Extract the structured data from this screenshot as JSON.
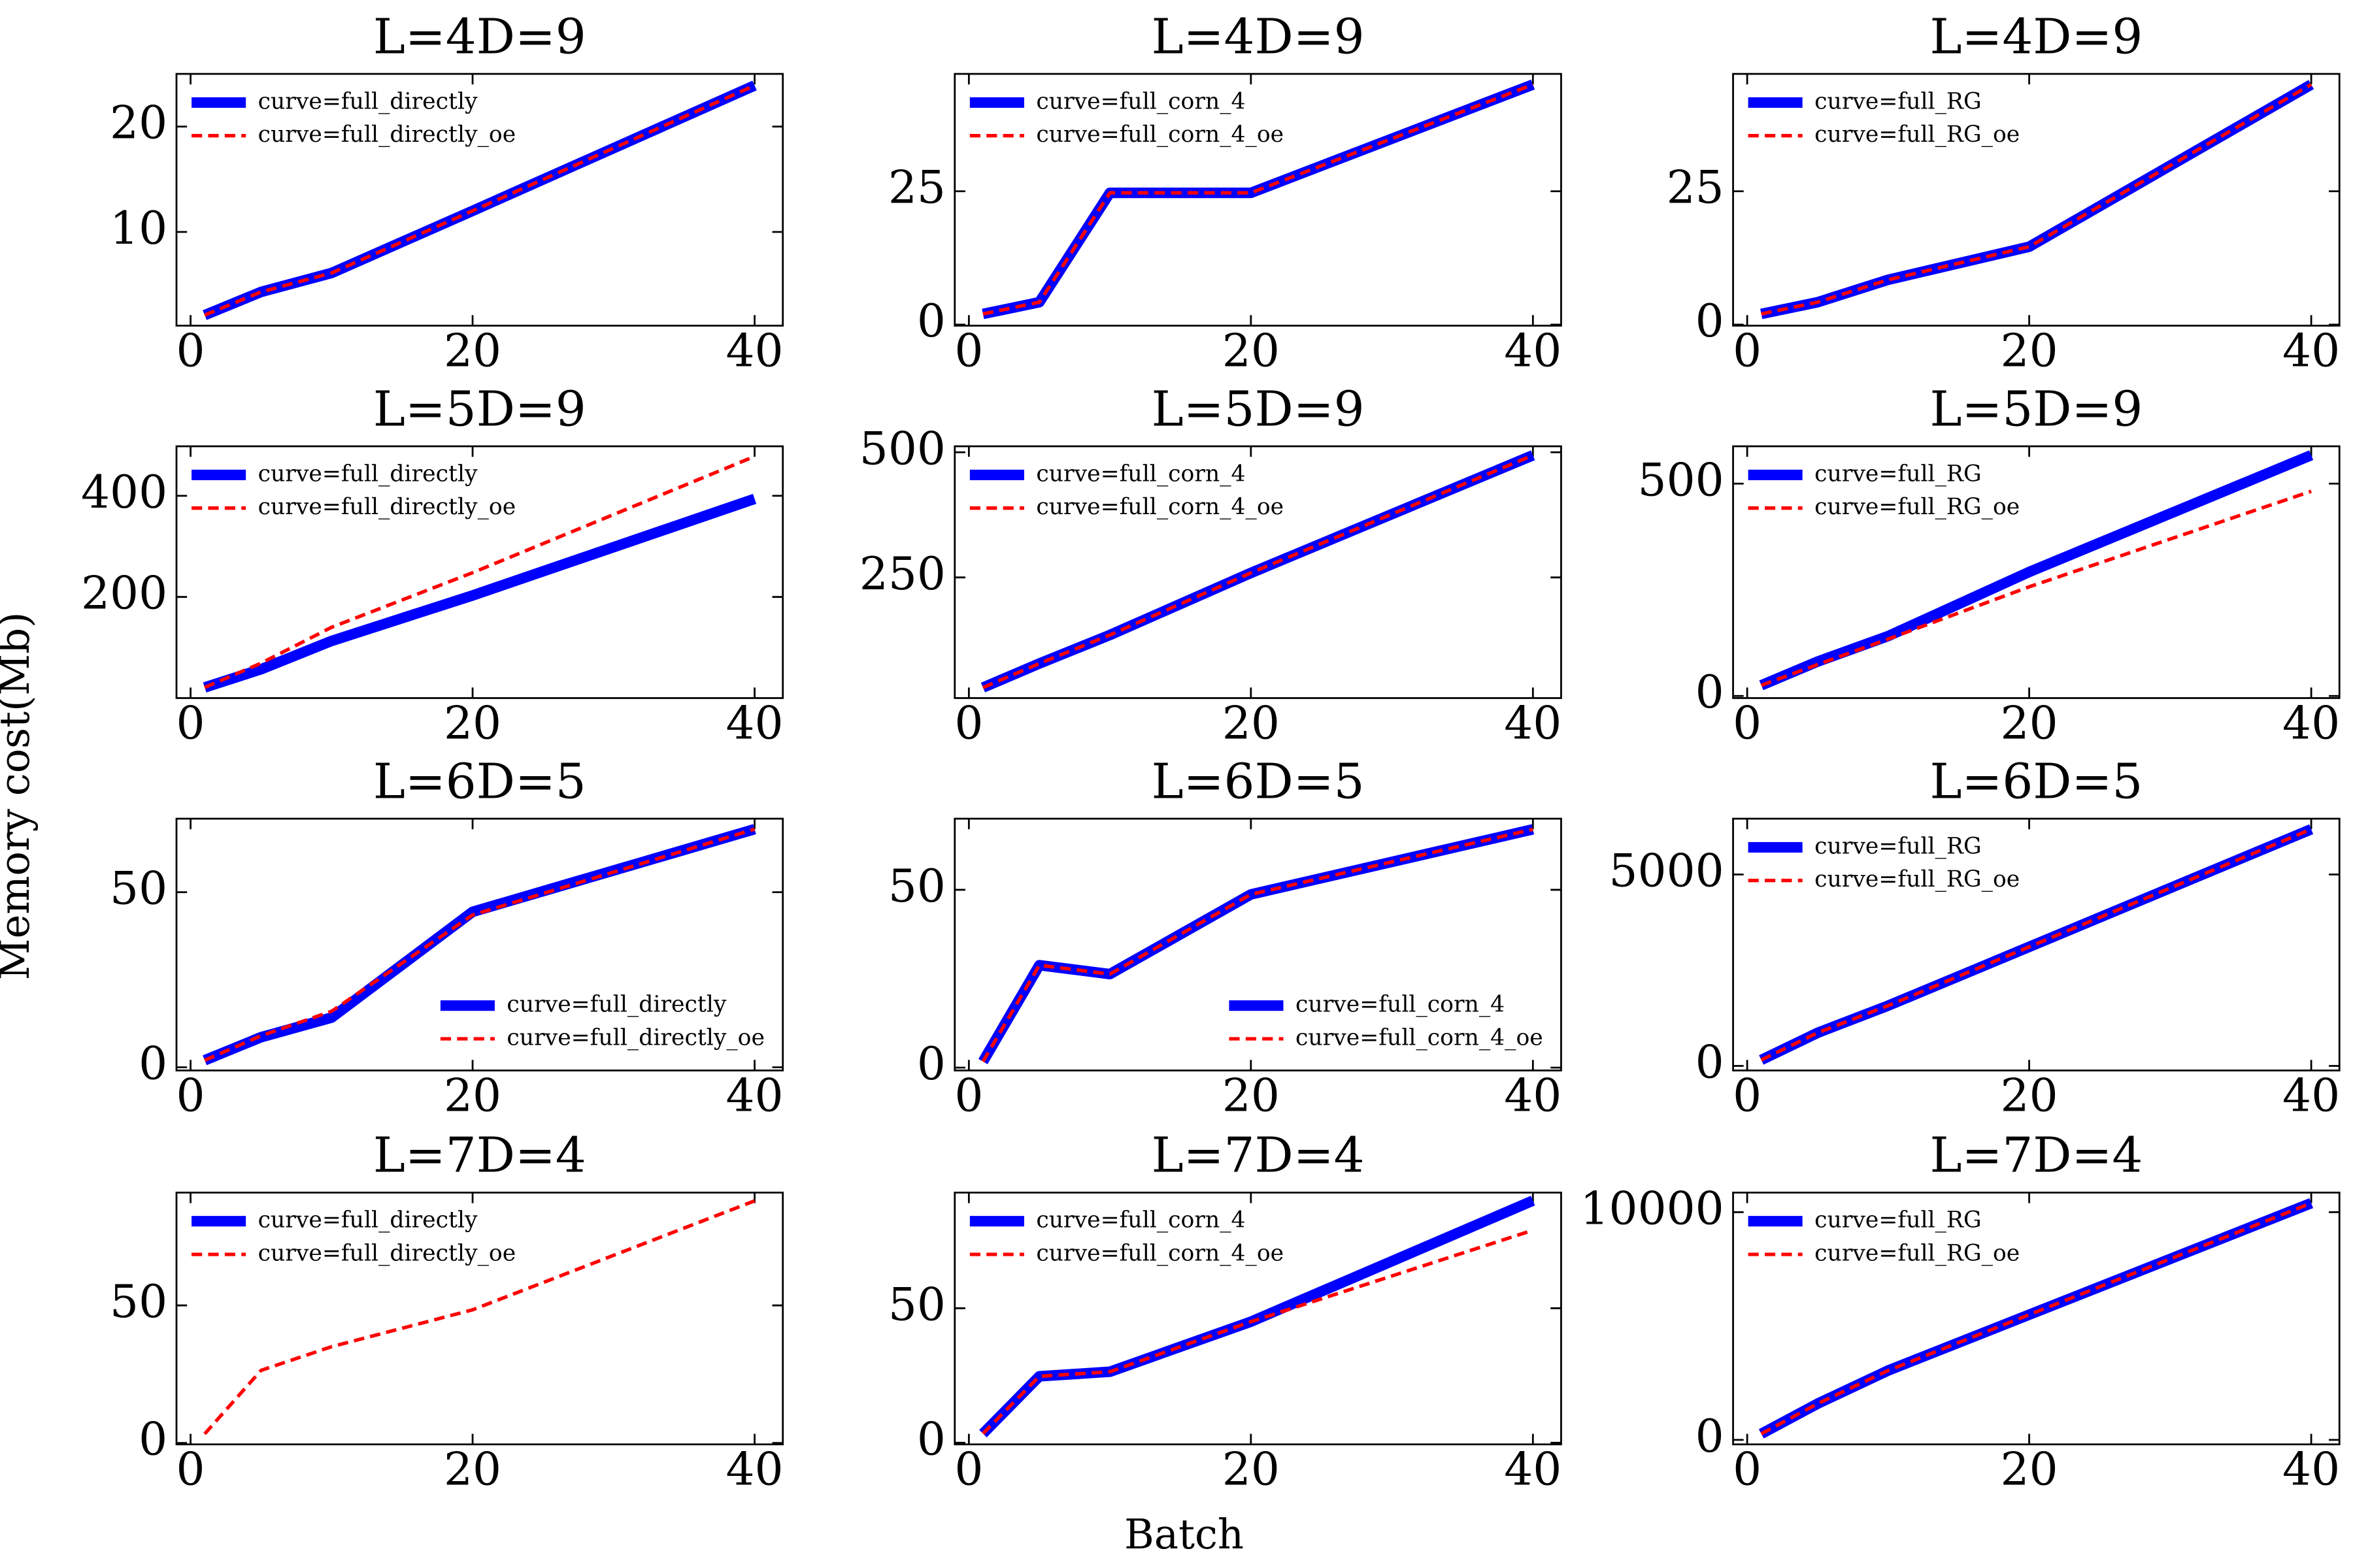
{
  "xlabel": "Batch",
  "ylabel": "Memory cost(Mb)",
  "chart_data": [
    {
      "type": "line",
      "title": "L=4D=9",
      "x": [
        1,
        5,
        10,
        20,
        40
      ],
      "xlim": [
        -1,
        42
      ],
      "xticks": [
        0,
        20,
        40
      ],
      "ylim": [
        1.1,
        25
      ],
      "yticks": [
        10,
        20
      ],
      "legend": "upper left",
      "series": [
        {
          "name": "curve=full_directly",
          "color": "blue",
          "values": [
            2.1,
            4.3,
            6.1,
            12,
            23.9
          ]
        },
        {
          "name": "curve=full_directly_oe",
          "color": "red",
          "values": [
            2.1,
            4.3,
            6.1,
            12,
            23.9
          ]
        }
      ]
    },
    {
      "type": "line",
      "title": "L=4D=9",
      "x": [
        1,
        5,
        10,
        20,
        40
      ],
      "xlim": [
        -1,
        42
      ],
      "xticks": [
        0,
        20,
        40
      ],
      "ylim": [
        -0.2,
        47
      ],
      "yticks": [
        0,
        25
      ],
      "legend": "upper left",
      "series": [
        {
          "name": "curve=full_corn_4",
          "color": "blue",
          "values": [
            2,
            4.2,
            24.7,
            24.7,
            45
          ]
        },
        {
          "name": "curve=full_corn_4_oe",
          "color": "red",
          "values": [
            2,
            4.2,
            24.7,
            24.7,
            45
          ]
        }
      ]
    },
    {
      "type": "line",
      "title": "L=4D=9",
      "x": [
        1,
        5,
        10,
        20,
        40
      ],
      "xlim": [
        -1,
        42
      ],
      "xticks": [
        0,
        20,
        40
      ],
      "ylim": [
        -0.2,
        47
      ],
      "yticks": [
        0,
        25
      ],
      "legend": "upper left",
      "series": [
        {
          "name": "curve=full_RG",
          "color": "blue",
          "values": [
            2,
            4.2,
            8.4,
            14.6,
            45
          ]
        },
        {
          "name": "curve=full_RG_oe",
          "color": "red",
          "values": [
            2,
            4.2,
            8.4,
            14.6,
            45
          ]
        }
      ]
    },
    {
      "type": "line",
      "title": "L=5D=9",
      "x": [
        1,
        5,
        10,
        20,
        40
      ],
      "xlim": [
        -1,
        42
      ],
      "xticks": [
        0,
        20,
        40
      ],
      "ylim": [
        0,
        498
      ],
      "yticks": [
        200,
        400
      ],
      "legend": "upper left",
      "series": [
        {
          "name": "curve=full_directly",
          "color": "blue",
          "values": [
            21,
            57,
            113,
            203,
            394
          ]
        },
        {
          "name": "curve=full_directly_oe",
          "color": "red",
          "values": [
            21,
            69,
            140,
            248,
            478
          ]
        }
      ]
    },
    {
      "type": "line",
      "title": "L=5D=9",
      "x": [
        1,
        5,
        10,
        20,
        40
      ],
      "xlim": [
        -1,
        42
      ],
      "xticks": [
        0,
        20,
        40
      ],
      "ylim": [
        9,
        512
      ],
      "yticks": [
        250,
        500
      ],
      "legend": "upper left",
      "series": [
        {
          "name": "curve=full_corn_4",
          "color": "blue",
          "values": [
            30,
            78,
            135,
            259,
            494
          ]
        },
        {
          "name": "curve=full_corn_4_oe",
          "color": "red",
          "values": [
            30,
            78,
            135,
            259,
            494
          ]
        }
      ]
    },
    {
      "type": "line",
      "title": "L=5D=9",
      "x": [
        1,
        5,
        10,
        20,
        40
      ],
      "xlim": [
        -1,
        42
      ],
      "xticks": [
        0,
        20,
        40
      ],
      "ylim": [
        -5,
        588
      ],
      "yticks": [
        0,
        500
      ],
      "legend": "upper left",
      "series": [
        {
          "name": "curve=full_RG",
          "color": "blue",
          "values": [
            25,
            81,
            141,
            292,
            567
          ]
        },
        {
          "name": "curve=full_RG_oe",
          "color": "red",
          "values": [
            25,
            74,
            134,
            257,
            482
          ]
        }
      ]
    },
    {
      "type": "line",
      "title": "L=6D=5",
      "x": [
        1,
        5,
        10,
        20,
        40
      ],
      "xlim": [
        -1,
        42
      ],
      "xticks": [
        0,
        20,
        40
      ],
      "ylim": [
        -0.9,
        71
      ],
      "yticks": [
        0,
        50
      ],
      "legend": "lower right",
      "series": [
        {
          "name": "curve=full_directly",
          "color": "blue",
          "values": [
            2,
            8.6,
            14.2,
            44.4,
            68
          ]
        },
        {
          "name": "curve=full_directly_oe",
          "color": "red",
          "values": [
            2,
            9,
            16,
            43.5,
            68
          ]
        }
      ]
    },
    {
      "type": "line",
      "title": "L=6D=5",
      "x": [
        1,
        5,
        10,
        20,
        40
      ],
      "xlim": [
        -1,
        42
      ],
      "xticks": [
        0,
        20,
        40
      ],
      "ylim": [
        -0.8,
        70
      ],
      "yticks": [
        0,
        50
      ],
      "legend": "lower right",
      "series": [
        {
          "name": "curve=full_corn_4",
          "color": "blue",
          "values": [
            1.7,
            28.8,
            26.3,
            48.7,
            67
          ]
        },
        {
          "name": "curve=full_corn_4_oe",
          "color": "red",
          "values": [
            1.7,
            28.8,
            26.3,
            48.7,
            67
          ]
        }
      ]
    },
    {
      "type": "line",
      "title": "L=6D=5",
      "x": [
        1,
        5,
        10,
        20,
        40
      ],
      "xlim": [
        -1,
        42
      ],
      "xticks": [
        0,
        20,
        40
      ],
      "ylim": [
        -118,
        6457
      ],
      "yticks": [
        0,
        5000
      ],
      "legend": "upper left",
      "series": [
        {
          "name": "curve=full_RG",
          "color": "blue",
          "values": [
            157,
            866,
            1575,
            3110,
            6181
          ]
        },
        {
          "name": "curve=full_RG_oe",
          "color": "red",
          "values": [
            157,
            866,
            1575,
            3110,
            6181
          ]
        }
      ]
    },
    {
      "type": "line",
      "title": "L=7D=4",
      "x": [
        1,
        5,
        10,
        20,
        40
      ],
      "xlim": [
        -1,
        42
      ],
      "xticks": [
        0,
        20,
        40
      ],
      "ylim": [
        -0.5,
        91
      ],
      "yticks": [
        0,
        50
      ],
      "legend": "upper left",
      "series": [
        {
          "name": "curve=full_directly",
          "color": "blue",
          "values": [
            null,
            null,
            null,
            null,
            null
          ]
        },
        {
          "name": "curve=full_directly_oe",
          "color": "red",
          "values": [
            3.3,
            26.4,
            35,
            48.4,
            88
          ]
        }
      ]
    },
    {
      "type": "line",
      "title": "L=7D=4",
      "x": [
        1,
        5,
        10,
        20,
        40
      ],
      "xlim": [
        -1,
        42
      ],
      "xticks": [
        0,
        20,
        40
      ],
      "ylim": [
        -0.6,
        93
      ],
      "yticks": [
        0,
        50
      ],
      "legend": "upper left",
      "series": [
        {
          "name": "curve=full_corn_4",
          "color": "blue",
          "values": [
            3.4,
            24.7,
            26.4,
            45,
            90
          ]
        },
        {
          "name": "curve=full_corn_4_oe",
          "color": "red",
          "values": [
            3.4,
            24.7,
            26.4,
            45,
            79
          ]
        }
      ]
    },
    {
      "type": "line",
      "title": "L=7D=4",
      "x": [
        1,
        5,
        10,
        20,
        40
      ],
      "xlim": [
        -1,
        42
      ],
      "xticks": [
        0,
        20,
        40
      ],
      "ylim": [
        -199,
        10861
      ],
      "yticks": [
        0,
        10000
      ],
      "legend": "upper left",
      "series": [
        {
          "name": "curve=full_RG",
          "color": "blue",
          "values": [
            265,
            1589,
            3046,
            5497,
            10397
          ]
        },
        {
          "name": "curve=full_RG_oe",
          "color": "red",
          "values": [
            265,
            1589,
            3046,
            5497,
            10397
          ]
        }
      ]
    }
  ]
}
